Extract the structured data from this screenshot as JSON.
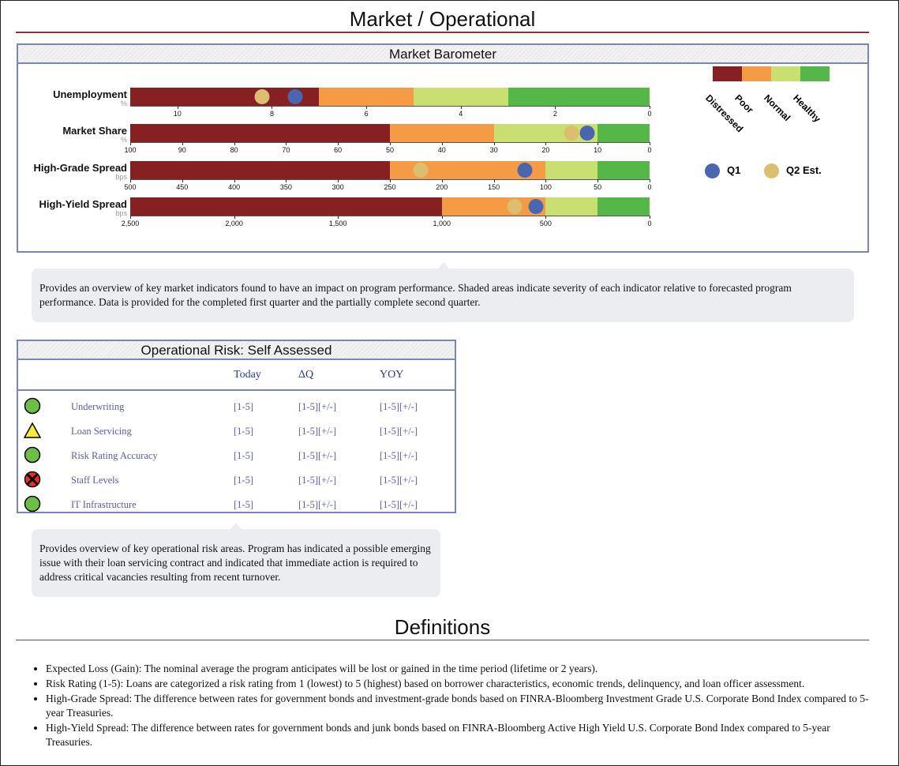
{
  "page": {
    "title": "Market / Operational",
    "definitions_title": "Definitions"
  },
  "market": {
    "title": "Market Barometer",
    "note": "Provides an overview of key market indicators found to have an impact on program performance. Shaded areas indicate severity of each indicator relative to forecasted program performance. Data is provided for the completed first quarter and the partially complete second quarter.",
    "colors": {
      "Distressed": "#862023",
      "Poor": "#f59b45",
      "Normal": "#c9df72",
      "Healthy": "#55b748",
      "q1": "#4a66b0",
      "q2": "#dbbf6e"
    },
    "legend": {
      "bands": [
        "Distressed",
        "Poor",
        "Normal",
        "Healthy"
      ],
      "q1": "Q1",
      "q2": "Q2 Est."
    }
  },
  "chart_data": {
    "type": "bar",
    "orientation": "horizontal bullet",
    "rows": [
      {
        "label": "Unemployment",
        "unit": "%",
        "domain": [
          11,
          0
        ],
        "ticks": [
          "10",
          "8",
          "6",
          "4",
          "2",
          "0"
        ],
        "tick_values": [
          10,
          8,
          6,
          4,
          2,
          0
        ],
        "bands": [
          11,
          7,
          5,
          3,
          0
        ],
        "q1": 7.5,
        "q2": 8.2
      },
      {
        "label": "Market Share",
        "unit": "%",
        "domain": [
          100,
          0
        ],
        "ticks": [
          "100",
          "90",
          "80",
          "70",
          "60",
          "50",
          "40",
          "30",
          "20",
          "10",
          "0"
        ],
        "tick_values": [
          100,
          90,
          80,
          70,
          60,
          50,
          40,
          30,
          20,
          10,
          0
        ],
        "bands": [
          100,
          50,
          30,
          10,
          0
        ],
        "q1": 12,
        "q2": 15
      },
      {
        "label": "High-Grade Spread",
        "unit": "bps",
        "domain": [
          500,
          0
        ],
        "ticks": [
          "500",
          "450",
          "400",
          "350",
          "300",
          "250",
          "200",
          "150",
          "100",
          "50",
          "0"
        ],
        "tick_values": [
          500,
          450,
          400,
          350,
          300,
          250,
          200,
          150,
          100,
          50,
          0
        ],
        "bands": [
          500,
          250,
          100,
          50,
          0
        ],
        "q1": 120,
        "q2": 220
      },
      {
        "label": "High-Yield Spread",
        "unit": "bps",
        "domain": [
          2500,
          0
        ],
        "ticks": [
          "2,500",
          "2,000",
          "1,500",
          "1,000",
          "500",
          "0"
        ],
        "tick_values": [
          2500,
          2000,
          1500,
          1000,
          500,
          0
        ],
        "bands": [
          2500,
          1000,
          500,
          250,
          0
        ],
        "q1": 547,
        "q2": 650
      }
    ]
  },
  "ops": {
    "title": "Operational Risk: Self Assessed",
    "headers": {
      "today": "Today",
      "dq": "ΔQ",
      "yoy": "YOY"
    },
    "rows": [
      {
        "status": "green-circle",
        "label": "Underwriting",
        "today": "[1-5]",
        "dq": "[1-5][+/-]",
        "yoy": "[1-5][+/-]"
      },
      {
        "status": "yellow-triangle",
        "label": "Loan Servicing",
        "today": "[1-5]",
        "dq": "[1-5][+/-]",
        "yoy": "[1-5][+/-]"
      },
      {
        "status": "green-circle",
        "label": "Risk Rating Accuracy",
        "today": "[1-5]",
        "dq": "[1-5][+/-]",
        "yoy": "[1-5][+/-]"
      },
      {
        "status": "red-x",
        "label": "Staff Levels",
        "today": "[1-5]",
        "dq": "[1-5][+/-]",
        "yoy": "[1-5][+/-]"
      },
      {
        "status": "green-circle",
        "label": "IT Infrastructure",
        "today": "[1-5]",
        "dq": "[1-5][+/-]",
        "yoy": "[1-5][+/-]"
      }
    ],
    "note": "Provides overview of key operational risk areas. Program has indicated a possible emerging issue with their loan servicing contract and indicated that immediate action is required to address critical vacancies resulting from recent turnover."
  },
  "definitions": [
    "Expected Loss (Gain): The nominal average the program anticipates will be lost or gained in the time period (lifetime or 2 years).",
    "Risk Rating (1-5): Loans are categorized a risk rating from 1 (lowest) to 5 (highest) based on borrower characteristics, economic trends, delinquency, and loan officer assessment.",
    "High-Grade Spread: The difference between rates for government bonds and investment-grade bonds based on FINRA-Bloomberg Investment Grade U.S. Corporate Bond Index compared to 5-year Treasuries.",
    "High-Yield Spread: The difference between rates for government bonds and junk bonds based on FINRA-Bloomberg Active High Yield U.S. Corporate Bond Index compared to 5-year Treasuries."
  ]
}
